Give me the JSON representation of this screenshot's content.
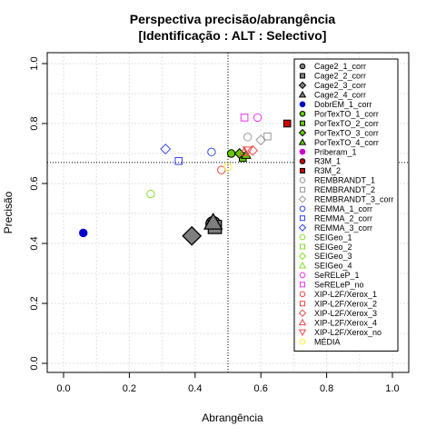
{
  "chart_data": {
    "type": "scatter",
    "title": "Perspectiva precisão/abrangência",
    "subtitle": "[Identificação : ALT : Selectivo]",
    "xlabel": "Abrangência",
    "ylabel": "Precisão",
    "xlim": [
      0,
      1
    ],
    "ylim": [
      0,
      1
    ],
    "xticks": [
      "0.0",
      "0.2",
      "0.4",
      "0.6",
      "0.8",
      "1.0"
    ],
    "yticks": [
      "0.0",
      "0.2",
      "0.4",
      "0.6",
      "0.8",
      "1.0"
    ],
    "grid": true,
    "reference_lines": {
      "x": 0.5,
      "y": 0.67
    },
    "legend_position": "right",
    "series": [
      {
        "name": "Cage2_1_corr",
        "shape": "circle",
        "fill": "#7f7f7f",
        "stroke": "#000000",
        "size": "large",
        "points": [
          [
            0.455,
            0.465
          ]
        ]
      },
      {
        "name": "Cage2_2_corr",
        "shape": "square",
        "fill": "#7f7f7f",
        "stroke": "#000000",
        "size": "large",
        "points": [
          [
            0.46,
            0.455
          ]
        ]
      },
      {
        "name": "Cage2_3_corr",
        "shape": "diamond",
        "fill": "#7f7f7f",
        "stroke": "#000000",
        "size": "large",
        "points": [
          [
            0.39,
            0.425
          ]
        ]
      },
      {
        "name": "Cage2_4_corr",
        "shape": "triangle",
        "fill": "#7f7f7f",
        "stroke": "#000000",
        "size": "large",
        "points": [
          [
            0.455,
            0.47
          ]
        ]
      },
      {
        "name": "DobrEM_1_corr",
        "shape": "circle",
        "fill": "#0000cc",
        "stroke": "#0000cc",
        "size": "normal",
        "points": [
          [
            0.06,
            0.435
          ]
        ]
      },
      {
        "name": "PorTexTO_1_corr",
        "shape": "circle",
        "fill": "#66cc00",
        "stroke": "#000000",
        "size": "normal",
        "points": [
          [
            0.51,
            0.7
          ]
        ]
      },
      {
        "name": "PorTexTO_2_corr",
        "shape": "square",
        "fill": "#66cc00",
        "stroke": "#000000",
        "size": "normal",
        "points": [
          [
            0.545,
            0.685
          ]
        ]
      },
      {
        "name": "PorTexTO_3_corr",
        "shape": "diamond",
        "fill": "#66cc00",
        "stroke": "#000000",
        "size": "normal",
        "points": [
          [
            0.535,
            0.7
          ]
        ]
      },
      {
        "name": "PorTexTO_4_corr",
        "shape": "triangle",
        "fill": "#66cc00",
        "stroke": "#000000",
        "size": "normal",
        "points": [
          [
            0.555,
            0.695
          ]
        ]
      },
      {
        "name": "Priberam_1",
        "shape": "circle",
        "fill": "#cc00cc",
        "stroke": "#cc00cc",
        "size": "normal",
        "points": []
      },
      {
        "name": "R3M_1",
        "shape": "circle",
        "fill": "#cc0000",
        "stroke": "#000000",
        "size": "normal",
        "points": []
      },
      {
        "name": "R3M_2",
        "shape": "square",
        "fill": "#cc0000",
        "stroke": "#000000",
        "size": "normal",
        "points": [
          [
            0.68,
            0.8
          ]
        ]
      },
      {
        "name": "REMBRANDT_1",
        "shape": "circle",
        "fill": "none",
        "stroke": "#999999",
        "size": "normal",
        "points": [
          [
            0.56,
            0.755
          ]
        ]
      },
      {
        "name": "REMBRANDT_2",
        "shape": "square",
        "fill": "none",
        "stroke": "#999999",
        "size": "normal",
        "points": [
          [
            0.62,
            0.757
          ]
        ]
      },
      {
        "name": "REMBRANDT_3_corr",
        "shape": "diamond",
        "fill": "none",
        "stroke": "#999999",
        "size": "normal",
        "points": [
          [
            0.6,
            0.745
          ]
        ]
      },
      {
        "name": "REMMA_1_corr",
        "shape": "circle",
        "fill": "none",
        "stroke": "#3344ee",
        "size": "normal",
        "points": [
          [
            0.45,
            0.705
          ]
        ]
      },
      {
        "name": "REMMA_2_corr",
        "shape": "square",
        "fill": "none",
        "stroke": "#3344ee",
        "size": "normal",
        "points": [
          [
            0.35,
            0.675
          ]
        ]
      },
      {
        "name": "REMMA_3_corr",
        "shape": "diamond",
        "fill": "none",
        "stroke": "#3344ee",
        "size": "normal",
        "points": [
          [
            0.31,
            0.715
          ]
        ]
      },
      {
        "name": "SEIGeo_1",
        "shape": "circle",
        "fill": "none",
        "stroke": "#88dd33",
        "size": "normal",
        "points": [
          [
            0.265,
            0.565
          ]
        ]
      },
      {
        "name": "SEIGeo_2",
        "shape": "square",
        "fill": "none",
        "stroke": "#88dd33",
        "size": "normal",
        "points": []
      },
      {
        "name": "SEIGeo_3",
        "shape": "diamond",
        "fill": "none",
        "stroke": "#88dd33",
        "size": "normal",
        "points": []
      },
      {
        "name": "SEIGeo_4",
        "shape": "triangle",
        "fill": "none",
        "stroke": "#88dd33",
        "size": "normal",
        "points": []
      },
      {
        "name": "SeRELeP_1",
        "shape": "circle",
        "fill": "none",
        "stroke": "#ee33ee",
        "size": "normal",
        "points": [
          [
            0.59,
            0.82
          ]
        ]
      },
      {
        "name": "SeRELeP_no",
        "shape": "square",
        "fill": "none",
        "stroke": "#ee33ee",
        "size": "normal",
        "points": [
          [
            0.55,
            0.82
          ]
        ]
      },
      {
        "name": "XIP-L2F/Xerox_1",
        "shape": "circle",
        "fill": "none",
        "stroke": "#ee4444",
        "size": "normal",
        "points": [
          [
            0.48,
            0.645
          ]
        ]
      },
      {
        "name": "XIP-L2F/Xerox_2",
        "shape": "square",
        "fill": "none",
        "stroke": "#ee4444",
        "size": "normal",
        "points": []
      },
      {
        "name": "XIP-L2F/Xerox_3",
        "shape": "diamond",
        "fill": "none",
        "stroke": "#ee4444",
        "size": "normal",
        "points": [
          [
            0.575,
            0.71
          ]
        ]
      },
      {
        "name": "XIP-L2F/Xerox_4",
        "shape": "triangle",
        "fill": "none",
        "stroke": "#ee4444",
        "size": "normal",
        "points": [
          [
            0.55,
            0.705
          ]
        ]
      },
      {
        "name": "XIP-L2F/Xerox_no",
        "shape": "triangle-down",
        "fill": "none",
        "stroke": "#ee4444",
        "size": "normal",
        "points": [
          [
            0.56,
            0.71
          ]
        ]
      },
      {
        "name": "MÉDIA",
        "shape": "circle",
        "fill": "none",
        "stroke": "#ffee33",
        "size": "normal",
        "points": [
          [
            0.5,
            0.655
          ]
        ]
      }
    ]
  }
}
